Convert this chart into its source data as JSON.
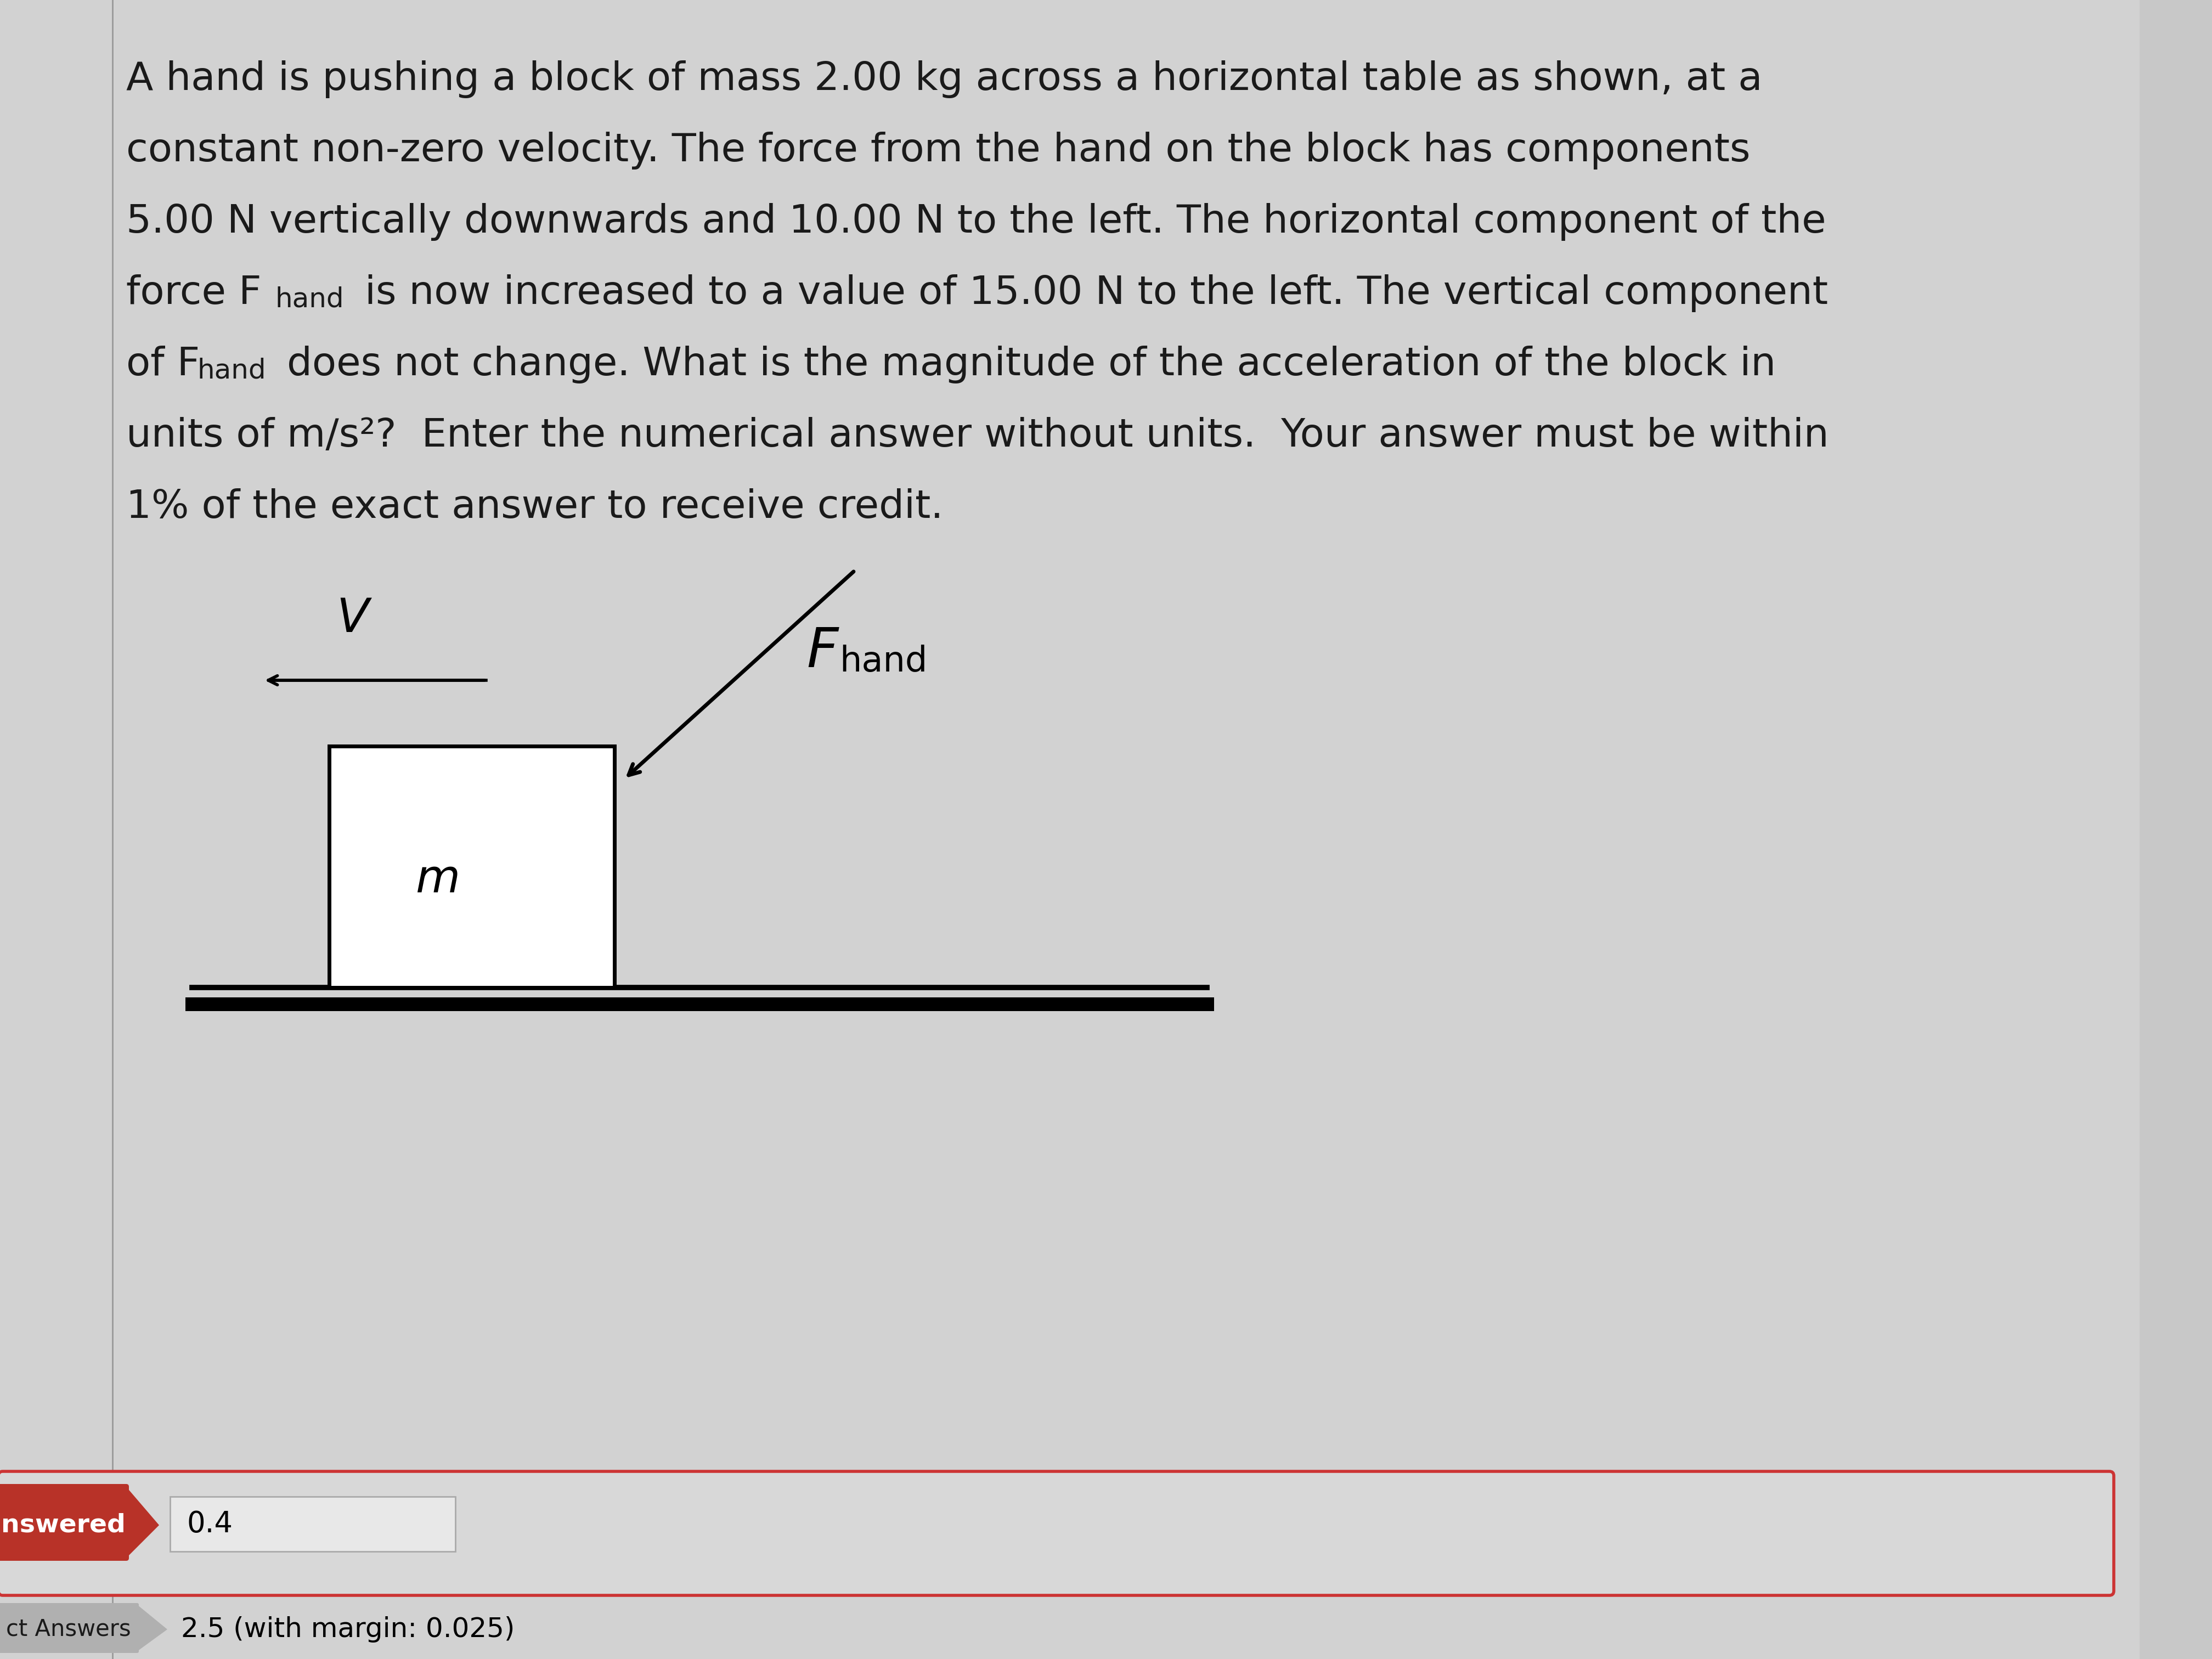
{
  "bg_color": "#c8c8c8",
  "panel_color": "#d8d8d8",
  "text_color": "#1a1a1a",
  "left_bar_color": "#8a8a8a",
  "red_color": "#b83228",
  "input_bg": "#e0e0e0",
  "input_border": "#cc3333",
  "answered_bg": "#b83228",
  "font_size_main": 52,
  "font_size_diagram": 56,
  "font_size_subscript": 36,
  "line1": "A hand is pushing a block of mass 2.00 kg across a horizontal table as shown, at a",
  "line2": "constant non-zero velocity. The force from the hand on the block has components",
  "line3": "5.00 N vertically downwards and 10.00 N to the left. The horizontal component of the",
  "line4a": "force F",
  "line4b": "hand",
  "line4c": " is now increased to a value of 15.00 N to the left. The vertical component",
  "line5a": "of F",
  "line5b": "hand",
  "line5c": " does not change. What is the magnitude of the acceleration of the block in",
  "line6": "units of m/s²?  Enter the numerical answer without units.  Your answer must be within",
  "line7": "1% of the exact answer to receive credit.",
  "input_value": "0.4",
  "correct_value": "2.5 (with margin: 0.025)"
}
